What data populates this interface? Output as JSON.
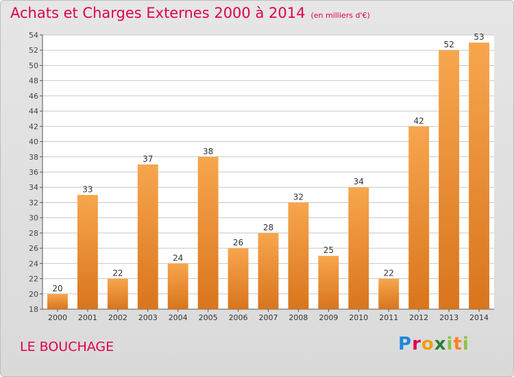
{
  "title": "Achats et Charges Externes 2000 à 2014",
  "subtitle": "(en milliers d'€)",
  "commune": "LE BOUCHAGE",
  "logo_text": "Proxiti",
  "colors": {
    "title": "#e0004a",
    "bar_light": "#f7a64e",
    "bar_dark": "#d9751c",
    "grid": "#c8c8c8",
    "axis": "#555555"
  },
  "chart_data": {
    "type": "bar",
    "categories": [
      "2000",
      "2001",
      "2002",
      "2003",
      "2004",
      "2005",
      "2006",
      "2007",
      "2008",
      "2009",
      "2010",
      "2011",
      "2012",
      "2013",
      "2014"
    ],
    "values": [
      20,
      33,
      22,
      37,
      24,
      38,
      26,
      28,
      32,
      25,
      34,
      22,
      42,
      52,
      53
    ],
    "ylim": [
      18,
      54
    ],
    "yticks": [
      18,
      20,
      22,
      24,
      26,
      28,
      30,
      32,
      34,
      36,
      38,
      40,
      42,
      44,
      46,
      48,
      50,
      52,
      54
    ],
    "grid": true,
    "data_labels": true
  }
}
